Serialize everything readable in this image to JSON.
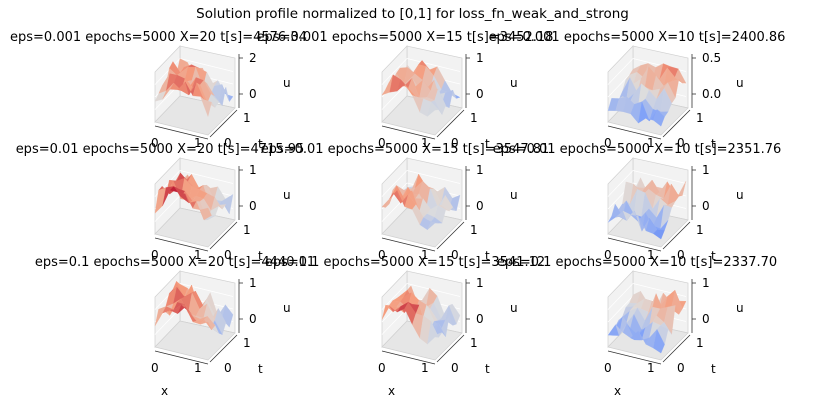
{
  "figure": {
    "suptitle": "Solution profile normalized to [0,1] for loss_fn_weak_and_strong"
  },
  "chart_data": [
    {
      "type": "surface",
      "title": "eps=0.001 epochs=5000 X=20 t[s]=4576.34",
      "zlabel": "u",
      "tlabel": "t",
      "xticks": [
        "0",
        "1"
      ],
      "tticks": [
        "0",
        "1"
      ],
      "zticks": [
        "2",
        "0"
      ],
      "seed": 11
    },
    {
      "type": "surface",
      "title": "eps=0.001 epochs=5000 X=15 t[s]=3452.18",
      "zlabel": "u",
      "tlabel": "t",
      "xticks": [
        "0",
        "1"
      ],
      "tticks": [
        "0",
        "1"
      ],
      "zticks": [
        "1",
        "0"
      ],
      "seed": 23
    },
    {
      "type": "surface",
      "title": "eps=0.001 epochs=5000 X=10 t[s]=2400.86",
      "zlabel": "u",
      "tlabel": "t",
      "xticks": [
        "0",
        "1"
      ],
      "tticks": [
        "0",
        "1"
      ],
      "zticks": [
        "0.5",
        "0.0"
      ],
      "seed": 37
    },
    {
      "type": "surface",
      "title": "eps=0.01 epochs=5000 X=20 t[s]=4715.95",
      "zlabel": "u",
      "tlabel": "t",
      "xticks": [
        "0",
        "1"
      ],
      "tticks": [
        "0",
        "1"
      ],
      "zticks": [
        "1",
        "0"
      ],
      "seed": 41
    },
    {
      "type": "surface",
      "title": "eps=0.01 epochs=5000 X=15 t[s]=3547.81",
      "zlabel": "u",
      "tlabel": "t",
      "xticks": [
        "0",
        "1"
      ],
      "tticks": [
        "0",
        "1"
      ],
      "zticks": [
        "1",
        "0"
      ],
      "seed": 53
    },
    {
      "type": "surface",
      "title": "eps=0.01 epochs=5000 X=10 t[s]=2351.76",
      "zlabel": "u",
      "tlabel": "t",
      "xticks": [
        "0",
        "1"
      ],
      "tticks": [
        "0",
        "1"
      ],
      "zticks": [
        "1",
        "0"
      ],
      "seed": 67
    },
    {
      "type": "surface",
      "title": "eps=0.1 epochs=5000 X=20 t[s]=4440.11",
      "zlabel": "u",
      "tlabel": "t",
      "xlabel": "x",
      "xticks": [
        "0",
        "1"
      ],
      "tticks": [
        "0",
        "1"
      ],
      "zticks": [
        "1",
        "0"
      ],
      "seed": 71
    },
    {
      "type": "surface",
      "title": "eps=0.1 epochs=5000 X=15 t[s]=3541.12",
      "zlabel": "u",
      "tlabel": "t",
      "xlabel": "x",
      "xticks": [
        "0",
        "1"
      ],
      "tticks": [
        "0",
        "1"
      ],
      "zticks": [
        "1",
        "0"
      ],
      "seed": 83
    },
    {
      "type": "surface",
      "title": "eps=0.1 epochs=5000 X=10 t[s]=2337.70",
      "zlabel": "u",
      "tlabel": "t",
      "xlabel": "x",
      "xticks": [
        "0",
        "1"
      ],
      "tticks": [
        "0",
        "1"
      ],
      "zticks": [
        "1",
        "0"
      ],
      "seed": 97
    }
  ]
}
